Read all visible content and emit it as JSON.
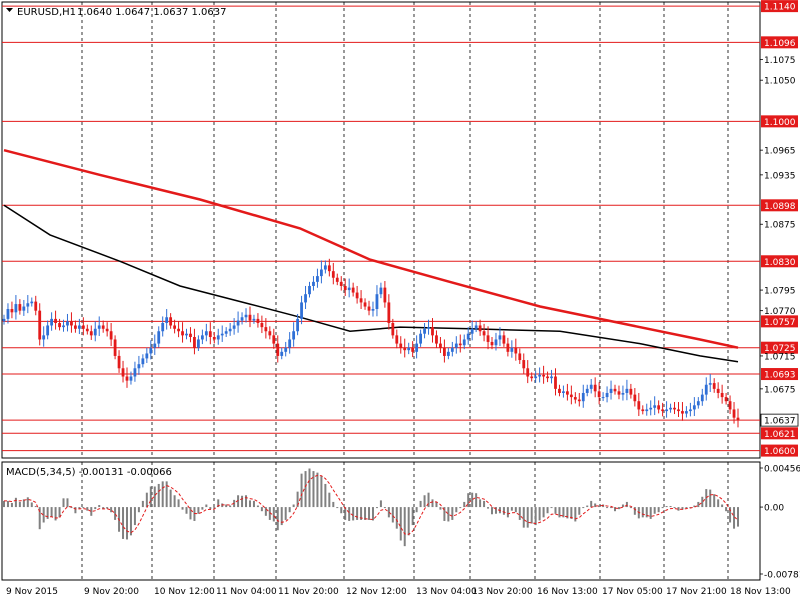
{
  "header": {
    "symbol": "EURUSD,H1",
    "ohlc": "1.0640 1.0647 1.0637 1.0637",
    "menu_icon": "triangle-down-icon"
  },
  "macd": {
    "label": "MACD(5,34,5) -0.00131 -0.00066"
  },
  "colors": {
    "bull": "#2f6fd6",
    "bear": "#e31a1a",
    "ma_red": "#e31a1a",
    "ma_black": "#000000",
    "level_line": "#e31a1a",
    "grid": "#000000",
    "macd_hist": "#808080",
    "macd_signal": "#e31a1a"
  },
  "chart_data": [
    {
      "type": "candlestick",
      "title": "EURUSD,H1",
      "ylim": [
        1.0591,
        1.1145
      ],
      "price_ticks": [
        "1.1140",
        "1.1096",
        "1.1075",
        "1.1050",
        "1.1000",
        "1.0965",
        "1.0935",
        "1.0898",
        "1.0875",
        "1.0830",
        "1.0795",
        "1.0770",
        "1.0757",
        "1.0725",
        "1.0715",
        "1.0693",
        "1.0675",
        "1.0637",
        "1.0621",
        "1.0600"
      ],
      "horizontal_levels": [
        1.114,
        1.1096,
        1.1,
        1.0898,
        1.083,
        1.0757,
        1.0725,
        1.0693,
        1.0637,
        1.0621,
        1.06
      ],
      "highlighted_levels": [
        "1.1140",
        "1.1096",
        "1.1000",
        "1.0898",
        "1.0830",
        "1.0757",
        "1.0725",
        "1.0693",
        "1.0621",
        "1.0600"
      ],
      "current_price": "1.0637",
      "x_tick_labels": [
        "9 Nov 2015",
        "9 Nov 20:00",
        "10 Nov 12:00",
        "11 Nov 04:00",
        "11 Nov 20:00",
        "12 Nov 12:00",
        "13 Nov 04:00",
        "13 Nov 20:00",
        "16 Nov 13:00",
        "17 Nov 05:00",
        "17 Nov 21:00",
        "18 Nov 13:00"
      ],
      "grid": "vertical dashed",
      "close_series": [
        1.076,
        1.0772,
        1.0768,
        1.0778,
        1.077,
        1.0775,
        1.0779,
        1.0781,
        1.077,
        1.0735,
        1.074,
        1.0752,
        1.076,
        1.0755,
        1.075,
        1.0752,
        1.0757,
        1.0752,
        1.0748,
        1.0752,
        1.0748,
        1.0745,
        1.074,
        1.0748,
        1.0752,
        1.0748,
        1.0745,
        1.0735,
        1.0715,
        1.07,
        1.069,
        1.0685,
        1.069,
        1.07,
        1.0705,
        1.0712,
        1.0718,
        1.0725,
        1.073,
        1.0745,
        1.0755,
        1.0762,
        1.0752,
        1.0748,
        1.0745,
        1.074,
        1.0742,
        1.0738,
        1.0725,
        1.0735,
        1.074,
        1.0745,
        1.0738,
        1.0735,
        1.074,
        1.0742,
        1.0745,
        1.0748,
        1.0752,
        1.0758,
        1.0762,
        1.0765,
        1.0758,
        1.076,
        1.0755,
        1.075,
        1.0745,
        1.074,
        1.073,
        1.0715,
        1.072,
        1.0725,
        1.0735,
        1.0745,
        1.076,
        1.078,
        1.079,
        1.08,
        1.0805,
        1.0812,
        1.082,
        1.0825,
        1.0818,
        1.081,
        1.0805,
        1.08,
        1.0795,
        1.0798,
        1.0792,
        1.0785,
        1.078,
        1.0775,
        1.077,
        1.0772,
        1.079,
        1.0798,
        1.078,
        1.0755,
        1.074,
        1.073,
        1.0725,
        1.0722,
        1.0725,
        1.072,
        1.073,
        1.0742,
        1.0748,
        1.075,
        1.074,
        1.073,
        1.0725,
        1.0715,
        1.072,
        1.0725,
        1.073,
        1.0728,
        1.0735,
        1.0742,
        1.0748,
        1.0752,
        1.0745,
        1.074,
        1.0732,
        1.0728,
        1.0735,
        1.074,
        1.073,
        1.072,
        1.0725,
        1.0718,
        1.071,
        1.07,
        1.069,
        1.0688,
        1.069,
        1.0692,
        1.069,
        1.0688,
        1.069,
        1.0675,
        1.067,
        1.0672,
        1.0668,
        1.0665,
        1.0662,
        1.066,
        1.067,
        1.0675,
        1.068,
        1.0672,
        1.0665,
        1.0665,
        1.067,
        1.0675,
        1.0672,
        1.0668,
        1.067,
        1.0675,
        1.0668,
        1.066,
        1.065,
        1.0648,
        1.065,
        1.0652,
        1.0655,
        1.065,
        1.0648,
        1.065,
        1.0652,
        1.065,
        1.0648,
        1.0645,
        1.0648,
        1.065,
        1.0655,
        1.066,
        1.0668,
        1.068,
        1.0682,
        1.0675,
        1.067,
        1.0665,
        1.066,
        1.065,
        1.064,
        1.0637
      ]
    },
    {
      "type": "bar",
      "title": "MACD(5,34,5) -0.00131 -0.00066",
      "ylim": [
        -0.00781,
        0.00456
      ],
      "ticks": [
        "0.00456",
        "0.00",
        "-0.00781"
      ]
    }
  ]
}
